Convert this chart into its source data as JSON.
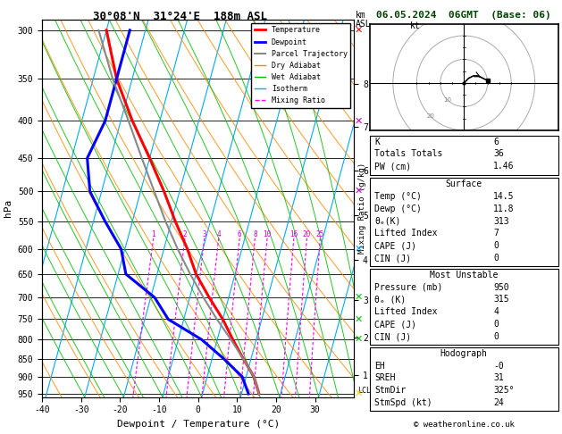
{
  "title_left": "30°08'N  31°24'E  188m ASL",
  "title_right": "06.05.2024  06GMT  (Base: 06)",
  "xlabel": "Dewpoint / Temperature (°C)",
  "ylabel_left": "hPa",
  "pressure_levels": [
    300,
    350,
    400,
    450,
    500,
    550,
    600,
    650,
    700,
    750,
    800,
    850,
    900,
    950
  ],
  "xlim": [
    -40,
    40
  ],
  "xticks": [
    -40,
    -30,
    -20,
    -10,
    0,
    10,
    20,
    30
  ],
  "temperature_data": {
    "pressure": [
      950,
      900,
      850,
      800,
      750,
      700,
      650,
      600,
      550,
      500,
      450,
      400,
      350,
      300
    ],
    "temp": [
      14.5,
      12.0,
      8.0,
      4.0,
      0.0,
      -5.0,
      -10.0,
      -14.0,
      -19.0,
      -24.0,
      -30.0,
      -37.0,
      -44.0,
      -50.0
    ],
    "dewp": [
      11.8,
      9.0,
      3.0,
      -4.0,
      -14.0,
      -19.0,
      -28.0,
      -31.0,
      -37.0,
      -43.0,
      -46.0,
      -44.0,
      -44.0,
      -44.0
    ]
  },
  "parcel_data": {
    "pressure": [
      950,
      900,
      850,
      800,
      750,
      700,
      650,
      600,
      550,
      500,
      450,
      400,
      350,
      300
    ],
    "temp": [
      14.5,
      12.0,
      8.0,
      3.5,
      -1.5,
      -6.5,
      -11.5,
      -16.5,
      -21.5,
      -26.5,
      -32.0,
      -38.0,
      -45.0,
      -52.0
    ]
  },
  "km_levels": [
    1,
    2,
    3,
    4,
    5,
    6,
    7,
    8
  ],
  "km_pressures": [
    895,
    795,
    705,
    622,
    540,
    468,
    408,
    356
  ],
  "mixing_ratio_values": [
    1,
    2,
    3,
    4,
    6,
    8,
    10,
    16,
    20,
    25
  ],
  "lcl_pressure": 940,
  "stats": {
    "K": 6,
    "Totals_Totals": 36,
    "PW_cm": 1.46,
    "Surface_Temp": 14.5,
    "Surface_Dewp": 11.8,
    "Surface_theta_e": 313,
    "Surface_LI": 7,
    "Surface_CAPE": 0,
    "Surface_CIN": 0,
    "MU_Pressure": 950,
    "MU_theta_e": 315,
    "MU_LI": 4,
    "MU_CAPE": 0,
    "MU_CIN": 0,
    "Hodo_EH": 0,
    "Hodo_SREH": 31,
    "Hodo_StmDir": "325°",
    "Hodo_StmSpd": 24
  },
  "colors": {
    "temperature": "#ff0000",
    "dewpoint": "#0000ff",
    "parcel": "#888888",
    "dry_adiabat": "#ff8800",
    "wet_adiabat": "#00bb00",
    "isotherm": "#00aaff",
    "mixing_ratio": "#ff00ff",
    "background": "#ffffff",
    "grid": "#000000"
  },
  "hodo_u": [
    0,
    2,
    4,
    6,
    8
  ],
  "hodo_v": [
    0,
    1,
    2,
    3,
    2
  ],
  "wind_flag_colors": [
    "#ff0000",
    "#cc00cc",
    "#cc00cc",
    "#00aaff",
    "#00cc00",
    "#00cc00",
    "#00cc00",
    "#ffcc00"
  ],
  "wind_flag_pressures": [
    300,
    400,
    500,
    600,
    700,
    750,
    800,
    950
  ]
}
